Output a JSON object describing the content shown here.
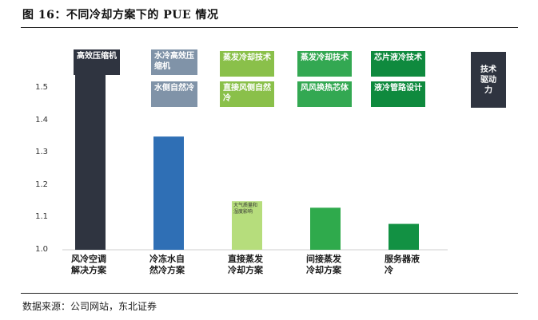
{
  "figure": {
    "title": "图 16：不同冷却方案下的 PUE 情况",
    "source": "数据来源：公司网站，东北证券"
  },
  "tags": [
    {
      "text": "高效压缩机",
      "color": "#2f3440"
    },
    {
      "text": "水冷高效压缩机",
      "color": "#8093a8"
    },
    {
      "text": "水侧自然冷",
      "color": "#8093a8"
    },
    {
      "text": "蒸发冷却技术",
      "color": "#8ac04a"
    },
    {
      "text": "直接风侧自然冷",
      "color": "#8ac04a"
    },
    {
      "text": "蒸发冷却技术",
      "color": "#33a852"
    },
    {
      "text": "风风换热芯体",
      "color": "#33a852"
    },
    {
      "text": "芯片液冷技术",
      "color": "#0f8a3e"
    },
    {
      "text": "液冷管路设计",
      "color": "#0f8a3e"
    },
    {
      "text": "技术驱动力",
      "color": "#2f3440"
    }
  ],
  "note": "大气质量和湿度影响",
  "chart_data": {
    "type": "bar",
    "title": "",
    "xlabel": "",
    "ylabel": "",
    "ylim": [
      1.0,
      1.55
    ],
    "yticks": [
      "1.0",
      "1.1",
      "1.2",
      "1.3",
      "1.4",
      "1.5"
    ],
    "categories": [
      "风冷空调解决方案",
      "冷冻水自然冷方案",
      "直接蒸发冷却方案",
      "间接蒸发冷却方案",
      "服务器液冷"
    ],
    "values": [
      1.55,
      1.35,
      1.15,
      1.13,
      1.08
    ],
    "colors": [
      "#2f3440",
      "#2f6fb5",
      "#b6dd7c",
      "#2faa4c",
      "#129143"
    ]
  }
}
